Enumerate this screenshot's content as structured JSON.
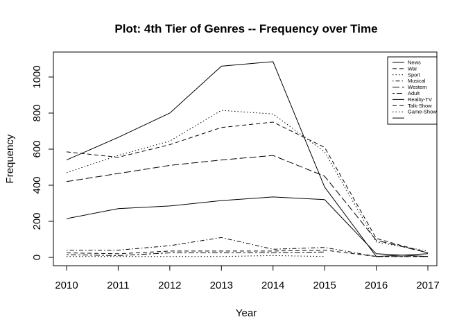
{
  "chart_data": {
    "type": "line",
    "title": "Plot: 4th Tier of Genres -- Frequency over Time",
    "xlabel": "Year",
    "ylabel": "Frequency",
    "x": [
      2010,
      2011,
      2012,
      2013,
      2014,
      2015,
      2016,
      2017
    ],
    "xlim": [
      2010,
      2017.25
    ],
    "ylim": [
      0,
      1100
    ],
    "xticks": [
      "2010",
      "2011",
      "2012",
      "2013",
      "2014",
      "2015",
      "2016",
      "2017"
    ],
    "yticks": [
      "0",
      "200",
      "400",
      "600",
      "800",
      "1000"
    ],
    "grid": false,
    "legend_position": "top-right",
    "legend_entries": [
      "News",
      "War",
      "Sport",
      "Musical",
      "Western",
      "Adult",
      "Reality-TV",
      "Talk-Show",
      "Game-Show"
    ],
    "series": [
      {
        "name": "News",
        "dash": "solid",
        "values": [
          540,
          665,
          800,
          1060,
          1085,
          390,
          5,
          20
        ]
      },
      {
        "name": "War",
        "dash": "dashed",
        "values": [
          585,
          555,
          625,
          720,
          750,
          610,
          105,
          25
        ]
      },
      {
        "name": "Sport",
        "dash": "dotted",
        "values": [
          470,
          565,
          645,
          815,
          795,
          585,
          85,
          35
        ]
      },
      {
        "name": "Musical",
        "dash": "dotdash",
        "values": [
          40,
          40,
          65,
          110,
          45,
          55,
          5,
          5
        ]
      },
      {
        "name": "Western",
        "dash": "longdash",
        "values": [
          420,
          465,
          510,
          540,
          565,
          450,
          95,
          25
        ]
      },
      {
        "name": "Adult",
        "dash": "twodash",
        "values": [
          15,
          10,
          25,
          25,
          25,
          30,
          null,
          null
        ]
      },
      {
        "name": "Reality-TV",
        "dash": "solid",
        "values": [
          215,
          270,
          285,
          315,
          335,
          320,
          20,
          5
        ]
      },
      {
        "name": "Talk-Show",
        "dash": "dashed",
        "values": [
          25,
          20,
          35,
          35,
          35,
          40,
          5,
          5
        ]
      },
      {
        "name": "Game-Show",
        "dash": "dotted",
        "values": [
          5,
          5,
          5,
          5,
          10,
          5,
          null,
          null
        ]
      }
    ]
  }
}
